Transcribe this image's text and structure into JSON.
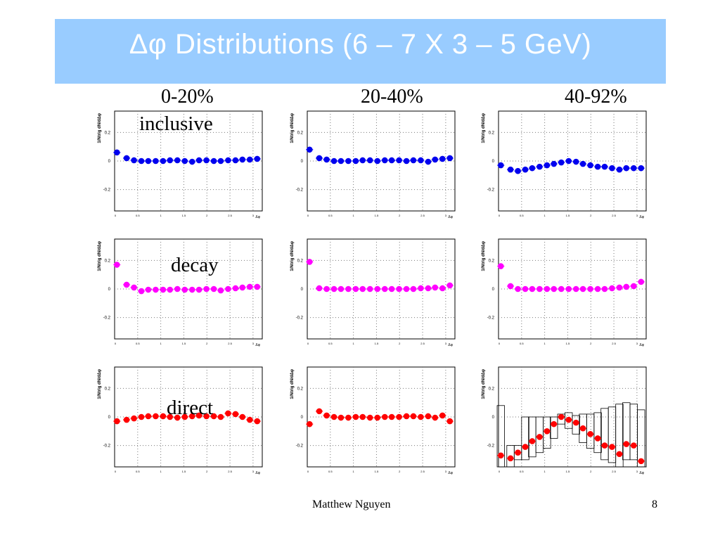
{
  "slide": {
    "title": "Δφ Distributions (6 – 7 X 3 – 5 GeV)",
    "footer_author": "Matthew Nguyen",
    "page_number": "8"
  },
  "columns": [
    "0-20%",
    "20-40%",
    "40-92%"
  ],
  "rows": [
    "inclusive",
    "decay",
    "direct"
  ],
  "axis": {
    "ylabel": "1/Ntrig dN/dΔφ",
    "xlabel": "Δφ",
    "xlim": [
      0,
      3.2
    ],
    "ylim": [
      -0.35,
      0.35
    ],
    "yticks": [
      -0.2,
      0,
      0.2
    ],
    "ytick_labels": [
      "-0.2",
      "0",
      "0.2"
    ],
    "xticks": [
      0,
      0.5,
      1,
      1.5,
      2,
      2.5,
      3
    ],
    "xtick_labels": [
      "0",
      "0.5",
      "1",
      "1.5",
      "2",
      "2.5",
      "3"
    ],
    "grid": true
  },
  "colors": {
    "inclusive": "#0000ee",
    "decay": "#ff00ff",
    "direct": "#ff0000",
    "title_bar": "#99ccff"
  },
  "chart_data": [
    {
      "type": "scatter",
      "row": "inclusive",
      "column": "0-20%",
      "x": [
        0.05,
        0.26,
        0.42,
        0.58,
        0.73,
        0.89,
        1.05,
        1.2,
        1.36,
        1.52,
        1.68,
        1.83,
        1.99,
        2.15,
        2.3,
        2.46,
        2.62,
        2.77,
        2.93,
        3.09
      ],
      "y": [
        0.06,
        0.02,
        0.005,
        0,
        0,
        0,
        0,
        0.005,
        0.005,
        0,
        -0.005,
        0.005,
        0.005,
        0,
        0,
        0.005,
        0.005,
        0.01,
        0.01,
        0.015
      ]
    },
    {
      "type": "scatter",
      "row": "inclusive",
      "column": "20-40%",
      "x": [
        0.05,
        0.26,
        0.42,
        0.58,
        0.73,
        0.89,
        1.05,
        1.2,
        1.36,
        1.52,
        1.68,
        1.83,
        1.99,
        2.15,
        2.3,
        2.46,
        2.62,
        2.77,
        2.93,
        3.09
      ],
      "y": [
        0.08,
        0.02,
        0.01,
        0,
        0,
        0,
        0,
        0.005,
        0.005,
        0,
        0.005,
        0.005,
        0.005,
        0,
        0.005,
        0.005,
        -0.005,
        0.01,
        0.015,
        0.02
      ]
    },
    {
      "type": "scatter",
      "row": "inclusive",
      "column": "40-92%",
      "x": [
        0.05,
        0.26,
        0.42,
        0.58,
        0.73,
        0.89,
        1.05,
        1.2,
        1.36,
        1.52,
        1.68,
        1.83,
        1.99,
        2.15,
        2.3,
        2.46,
        2.62,
        2.77,
        2.93,
        3.09
      ],
      "y": [
        -0.03,
        -0.06,
        -0.07,
        -0.06,
        -0.05,
        -0.04,
        -0.03,
        -0.02,
        -0.01,
        0,
        -0.005,
        -0.02,
        -0.03,
        -0.04,
        -0.04,
        -0.05,
        -0.06,
        -0.05,
        -0.05,
        -0.05
      ]
    },
    {
      "type": "scatter",
      "row": "decay",
      "column": "0-20%",
      "x": [
        0.05,
        0.26,
        0.42,
        0.58,
        0.73,
        0.89,
        1.05,
        1.2,
        1.36,
        1.52,
        1.68,
        1.83,
        1.99,
        2.15,
        2.3,
        2.46,
        2.62,
        2.77,
        2.93,
        3.09
      ],
      "y": [
        0.17,
        0.03,
        0.01,
        -0.015,
        -0.005,
        -0.005,
        -0.005,
        -0.005,
        0,
        -0.005,
        -0.005,
        -0.005,
        0,
        0,
        -0.01,
        0,
        0.005,
        0.01,
        0.015,
        0.015
      ]
    },
    {
      "type": "scatter",
      "row": "decay",
      "column": "20-40%",
      "x": [
        0.05,
        0.26,
        0.42,
        0.58,
        0.73,
        0.89,
        1.05,
        1.2,
        1.36,
        1.52,
        1.68,
        1.83,
        1.99,
        2.15,
        2.3,
        2.46,
        2.62,
        2.77,
        2.93,
        3.09
      ],
      "y": [
        0.19,
        0.005,
        0,
        0,
        0,
        0,
        0,
        0,
        0,
        0,
        0,
        0,
        0,
        0,
        0,
        0.005,
        0.005,
        0.01,
        0.005,
        0.025
      ]
    },
    {
      "type": "scatter",
      "row": "decay",
      "column": "40-92%",
      "x": [
        0.05,
        0.26,
        0.42,
        0.58,
        0.73,
        0.89,
        1.05,
        1.2,
        1.36,
        1.52,
        1.68,
        1.83,
        1.99,
        2.15,
        2.3,
        2.46,
        2.62,
        2.77,
        2.93,
        3.09
      ],
      "y": [
        0.16,
        0.02,
        0,
        0,
        0,
        0,
        0,
        0,
        0,
        0,
        0,
        0,
        0,
        0,
        0,
        0.005,
        0.01,
        0.015,
        0.02,
        0.05
      ]
    },
    {
      "type": "scatter",
      "row": "direct",
      "column": "0-20%",
      "x": [
        0.05,
        0.26,
        0.42,
        0.58,
        0.73,
        0.89,
        1.05,
        1.2,
        1.36,
        1.52,
        1.68,
        1.83,
        1.99,
        2.15,
        2.3,
        2.46,
        2.62,
        2.77,
        2.93,
        3.09
      ],
      "y": [
        -0.03,
        -0.02,
        -0.01,
        0,
        0.005,
        0.005,
        0.005,
        0,
        -0.005,
        0,
        0.005,
        0.01,
        0.005,
        0.005,
        0,
        0.025,
        0.02,
        0,
        -0.02,
        -0.03
      ]
    },
    {
      "type": "scatter",
      "row": "direct",
      "column": "20-40%",
      "x": [
        0.05,
        0.26,
        0.42,
        0.58,
        0.73,
        0.89,
        1.05,
        1.2,
        1.36,
        1.52,
        1.68,
        1.83,
        1.99,
        2.15,
        2.3,
        2.46,
        2.62,
        2.77,
        2.93,
        3.09
      ],
      "y": [
        -0.05,
        0.04,
        0.01,
        0,
        -0.005,
        -0.005,
        0,
        0,
        -0.005,
        -0.005,
        0,
        0,
        0,
        0.005,
        0.005,
        0,
        0.005,
        -0.005,
        0.01,
        -0.03
      ]
    },
    {
      "type": "scatter",
      "row": "direct",
      "column": "40-92%",
      "x": [
        0.05,
        0.26,
        0.42,
        0.58,
        0.73,
        0.89,
        1.05,
        1.2,
        1.36,
        1.52,
        1.68,
        1.83,
        1.99,
        2.15,
        2.3,
        2.46,
        2.62,
        2.77,
        2.93,
        3.09
      ],
      "y": [
        -0.27,
        -0.29,
        -0.25,
        -0.21,
        -0.17,
        -0.14,
        -0.1,
        -0.05,
        0,
        -0.02,
        -0.04,
        -0.08,
        -0.12,
        -0.15,
        -0.2,
        -0.21,
        -0.26,
        -0.19,
        -0.2,
        -0.31
      ],
      "box_lo": [
        -0.35,
        -0.35,
        -0.3,
        -0.3,
        -0.28,
        -0.25,
        -0.22,
        -0.15,
        -0.05,
        -0.08,
        -0.12,
        -0.18,
        -0.22,
        -0.25,
        -0.3,
        -0.32,
        -0.35,
        -0.3,
        -0.3,
        -0.35
      ],
      "box_hi": [
        0.08,
        -0.2,
        -0.2,
        0.0,
        0.0,
        0.0,
        0.0,
        0.0,
        0.02,
        0.03,
        0.01,
        0.02,
        0.02,
        0.03,
        0.06,
        0.07,
        0.09,
        0.1,
        0.09,
        0.05
      ]
    }
  ]
}
